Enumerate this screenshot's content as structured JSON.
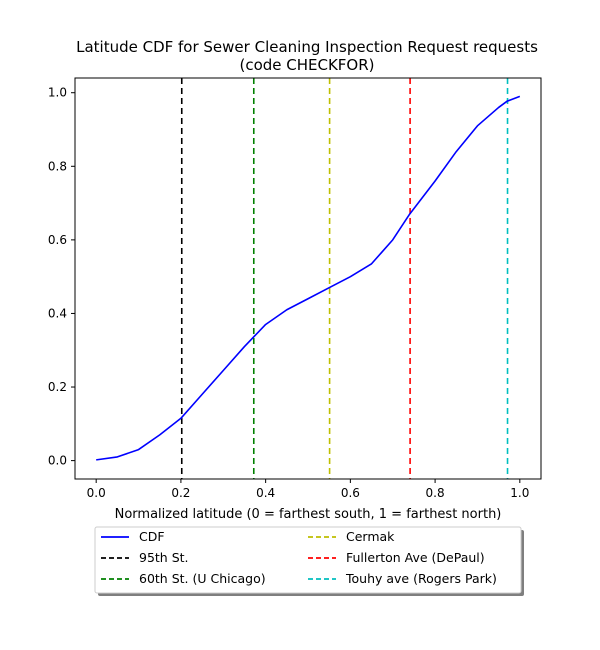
{
  "chart_data": {
    "type": "line",
    "title_lines": [
      "Latitude CDF for Sewer Cleaning Inspection Request  requests",
      "(code CHECKFOR)"
    ],
    "xlabel": "Normalized latitude (0 = farthest south, 1 = farthest north)",
    "ylabel": "",
    "xlim": [
      -0.05,
      1.05
    ],
    "ylim": [
      -0.05,
      1.04
    ],
    "xticks": [
      0.0,
      0.2,
      0.4,
      0.6,
      0.8,
      1.0
    ],
    "xtick_labels": [
      "0.0",
      "0.2",
      "0.4",
      "0.6",
      "0.8",
      "1.0"
    ],
    "yticks": [
      0.0,
      0.2,
      0.4,
      0.6,
      0.8,
      1.0
    ],
    "ytick_labels": [
      "0.0",
      "0.2",
      "0.4",
      "0.6",
      "0.8",
      "1.0"
    ],
    "grid": false,
    "legend_placement": "below plot",
    "series": [
      {
        "name": "CDF",
        "color": "#0000ff",
        "style": "solid",
        "points": [
          [
            0.0,
            0.002
          ],
          [
            0.05,
            0.01
          ],
          [
            0.1,
            0.03
          ],
          [
            0.15,
            0.07
          ],
          [
            0.2,
            0.115
          ],
          [
            0.25,
            0.18
          ],
          [
            0.3,
            0.245
          ],
          [
            0.35,
            0.31
          ],
          [
            0.4,
            0.37
          ],
          [
            0.45,
            0.41
          ],
          [
            0.5,
            0.44
          ],
          [
            0.55,
            0.47
          ],
          [
            0.6,
            0.5
          ],
          [
            0.65,
            0.535
          ],
          [
            0.7,
            0.6
          ],
          [
            0.74,
            0.67
          ],
          [
            0.8,
            0.76
          ],
          [
            0.85,
            0.84
          ],
          [
            0.9,
            0.91
          ],
          [
            0.95,
            0.96
          ],
          [
            0.97,
            0.977
          ],
          [
            1.0,
            0.99
          ]
        ]
      }
    ],
    "reference_lines": [
      {
        "name": "95th St.",
        "x": 0.202,
        "color": "#000000"
      },
      {
        "name": "60th St. (U Chicago)",
        "x": 0.372,
        "color": "#008000"
      },
      {
        "name": "Cermak",
        "x": 0.551,
        "color": "#bfbf00"
      },
      {
        "name": "Fullerton Ave (DePaul)",
        "x": 0.741,
        "color": "#ff0000"
      },
      {
        "name": "Touhy ave (Rogers Park)",
        "x": 0.971,
        "color": "#00bfbf"
      }
    ],
    "legend": {
      "columns": [
        [
          "CDF",
          "95th St.",
          "60th St. (U Chicago)"
        ],
        [
          "Cermak",
          "Fullerton Ave (DePaul)",
          "Touhy ave (Rogers Park)"
        ]
      ]
    }
  }
}
